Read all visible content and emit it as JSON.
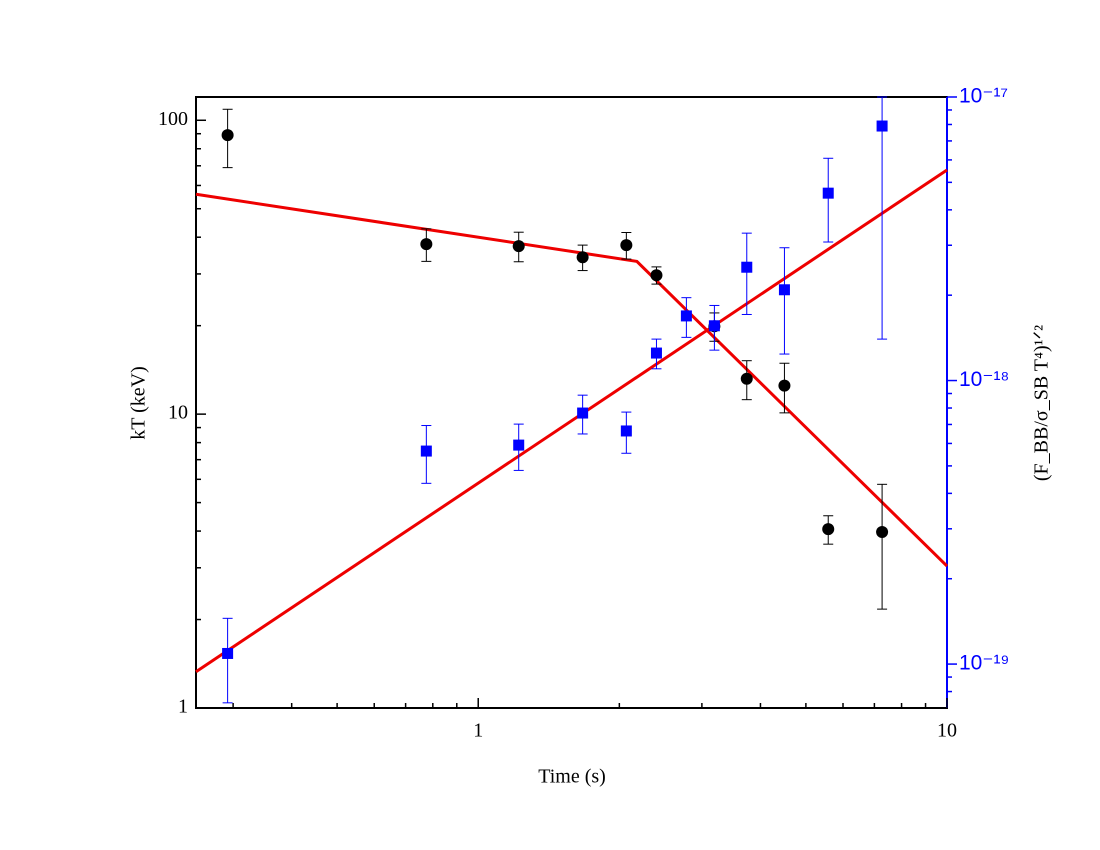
{
  "chart_data": {
    "type": "scatter",
    "xlabel": "Time (s)",
    "ylabel": "kT (keV)",
    "y2label": "(F_BB/σ_SB T⁴)¹ᐟ²",
    "xscale": "log",
    "yscale": "log",
    "y2scale": "log",
    "xlim": [
      0.25,
      10
    ],
    "xticks": [
      1,
      10
    ],
    "xminorticks": [
      0.3,
      0.4,
      0.5,
      0.6,
      0.7,
      0.8,
      0.9,
      2,
      3,
      4,
      5,
      6,
      7,
      8,
      9
    ],
    "ylim": [
      1,
      120
    ],
    "yticks": [
      1,
      10,
      100
    ],
    "yminorticks": [
      2,
      3,
      4,
      5,
      6,
      7,
      8,
      9,
      20,
      30,
      40,
      50,
      60,
      70,
      80,
      90
    ],
    "y2lim": [
      7e-20,
      1e-17
    ],
    "y2ticks": [
      {
        "value": 1e-19,
        "label": "10⁻¹⁹"
      },
      {
        "value": 1e-18,
        "label": "10⁻¹⁸"
      },
      {
        "value": 1e-17,
        "label": "10⁻¹⁷"
      }
    ],
    "y2minorticks": [
      8e-20,
      9e-20,
      2e-19,
      3e-19,
      4e-19,
      5e-19,
      6e-19,
      7e-19,
      8e-19,
      9e-19,
      2e-18,
      3e-18,
      4e-18,
      5e-18,
      6e-18,
      7e-18,
      8e-18,
      9e-18
    ],
    "y2color": "#0000ff",
    "series": [
      {
        "color": "#000000",
        "marker": "circle",
        "x": [
          0.292,
          0.775,
          1.22,
          1.67,
          2.07,
          2.4,
          3.19,
          3.74,
          4.5,
          5.58,
          7.27
        ],
        "values": [
          89,
          37.9,
          37.3,
          34.2,
          37.6,
          29.7,
          19.9,
          13.2,
          12.5,
          4.06,
          3.97
        ],
        "errors": [
          20,
          4.8,
          4.3,
          3.4,
          3.9,
          2,
          2.2,
          2,
          2.4,
          0.45,
          1.8
        ]
      },
      {
        "color": "#0000ff",
        "marker": "square",
        "axis": "y2",
        "x": [
          0.292,
          0.775,
          1.22,
          1.67,
          2.07,
          2.4,
          2.78,
          3.19,
          3.74,
          4.5,
          5.58,
          7.27
        ],
        "values": [
          1.09e-19,
          5.64e-19,
          5.92e-19,
          7.68e-19,
          6.64e-19,
          1.25e-18,
          1.69e-18,
          1.56e-18,
          2.51e-18,
          2.09e-18,
          4.58e-18,
          7.9e-18
        ],
        "errors": [
          3.6e-20,
          1.3e-19,
          1.1e-19,
          1.2e-19,
          1.1e-19,
          1.5e-19,
          2.7e-19,
          2.8e-19,
          8e-19,
          8.5e-19,
          1.5e-18,
          6.5e-18
        ]
      }
    ],
    "fits": [
      {
        "color": "#ee0000",
        "x": [
          0.25,
          2.18,
          10
        ],
        "values": [
          56,
          33.1,
          3.04
        ]
      },
      {
        "color": "#ee0000",
        "axis": "y2",
        "x": [
          0.25,
          10
        ],
        "values": [
          9.4e-20,
          5.53e-18
        ]
      }
    ]
  }
}
